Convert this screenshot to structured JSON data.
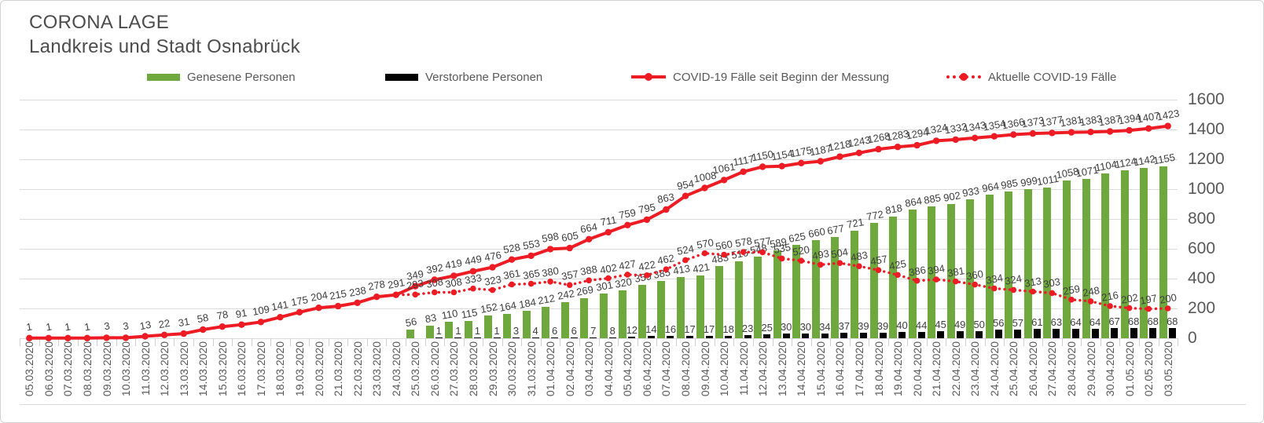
{
  "header": {
    "title": "CORONA LAGE",
    "subtitle": "Landkreis und Stadt Osnabrück"
  },
  "legend": [
    {
      "label": "Genesene Personen",
      "marker": "bar",
      "color": "#6FA83C"
    },
    {
      "label": "Verstorbene Personen",
      "marker": "bar",
      "color": "#000000"
    },
    {
      "label": "COVID-19 Fälle seit Beginn der Messung",
      "marker": "solid-line",
      "color": "#ED1C24"
    },
    {
      "label": "Aktuelle COVID-19 Fälle",
      "marker": "dotted-line",
      "color": "#ED1C24"
    }
  ],
  "colors": {
    "recovered": "#6FA83C",
    "deceased": "#000000",
    "cases": "#ED1C24",
    "grid": "#dbdbdb",
    "axis_text": "#595959",
    "data_label": "#3f3f3f"
  },
  "chart_data": {
    "type": "bar",
    "subtype": "bars-with-lines",
    "title": "CORONA LAGE – Landkreis und Stadt Osnabrück",
    "xlabel": "",
    "ylabel": "",
    "ylim": [
      0,
      1600
    ],
    "yticks": [
      0,
      200,
      400,
      600,
      800,
      1000,
      1200,
      1400,
      1600
    ],
    "grid": "horizontal",
    "legend_position": "top",
    "value_labels": true,
    "categories": [
      "05.03.2020",
      "06.03.2020",
      "07.03.2020",
      "08.03.2020",
      "09.03.2020",
      "10.03.2020",
      "11.03.2020",
      "12.03.2020",
      "13.03.2020",
      "14.03.2020",
      "15.03.2020",
      "16.03.2020",
      "17.03.2020",
      "18.03.2020",
      "19.03.2020",
      "20.03.2020",
      "21.03.2020",
      "22.03.2020",
      "23.03.2020",
      "24.03.2020",
      "25.03.2020",
      "26.03.2020",
      "27.03.2020",
      "28.03.2020",
      "29.03.2020",
      "30.03.2020",
      "31.03.2020",
      "01.04.2020",
      "02.04.2020",
      "03.04.2020",
      "04.04.2020",
      "05.04.2020",
      "06.04.2020",
      "07.04.2020",
      "08.04.2020",
      "09.04.2020",
      "10.04.2020",
      "11.04.2020",
      "12.04.2020",
      "13.04.2020",
      "14.04.2020",
      "15.04.2020",
      "16.04.2020",
      "17.04.2020",
      "18.04.2020",
      "19.04.2020",
      "20.04.2020",
      "21.04.2020",
      "22.04.2020",
      "23.04.2020",
      "24.04.2020",
      "25.04.2020",
      "26.04.2020",
      "27.04.2020",
      "28.04.2020",
      "29.04.2020",
      "30.04.2020",
      "01.05.2020",
      "02.05.2020",
      "03.05.2020"
    ],
    "series": [
      {
        "name": "Genesene Personen",
        "type": "bar",
        "color": "#6FA83C",
        "values": [
          null,
          null,
          null,
          null,
          null,
          null,
          null,
          null,
          null,
          null,
          null,
          null,
          null,
          null,
          null,
          null,
          null,
          null,
          null,
          null,
          56,
          83,
          110,
          115,
          152,
          164,
          184,
          212,
          242,
          269,
          301,
          320,
          359,
          385,
          413,
          421,
          483,
          516,
          548,
          589,
          625,
          660,
          677,
          721,
          772,
          818,
          864,
          885,
          902,
          933,
          964,
          985,
          999,
          1011,
          1058,
          1071,
          1104,
          1124,
          1142,
          1155
        ]
      },
      {
        "name": "Verstorbene Personen",
        "type": "bar",
        "color": "#000000",
        "values": [
          null,
          null,
          null,
          null,
          null,
          null,
          null,
          null,
          null,
          null,
          null,
          null,
          null,
          null,
          null,
          null,
          null,
          null,
          null,
          null,
          null,
          1,
          1,
          1,
          1,
          3,
          4,
          6,
          6,
          7,
          8,
          12,
          14,
          16,
          17,
          17,
          18,
          23,
          25,
          30,
          30,
          34,
          37,
          39,
          39,
          40,
          44,
          45,
          49,
          50,
          56,
          57,
          61,
          63,
          64,
          64,
          67,
          68,
          68,
          68
        ]
      },
      {
        "name": "COVID-19 Fälle seit Beginn der Messung",
        "type": "line",
        "style": "solid",
        "color": "#ED1C24",
        "values": [
          1,
          1,
          1,
          1,
          3,
          3,
          13,
          22,
          31,
          58,
          78,
          91,
          109,
          141,
          175,
          204,
          215,
          238,
          278,
          291,
          349,
          392,
          419,
          449,
          476,
          528,
          553,
          598,
          605,
          664,
          711,
          759,
          795,
          863,
          954,
          1008,
          1061,
          1117,
          1150,
          1154,
          1175,
          1187,
          1218,
          1243,
          1268,
          1283,
          1294,
          1324,
          1332,
          1343,
          1354,
          1366,
          1373,
          1377,
          1381,
          1383,
          1387,
          1394,
          1407,
          1423
        ]
      },
      {
        "name": "Aktuelle COVID-19 Fälle",
        "type": "line",
        "style": "dotted",
        "color": "#ED1C24",
        "values": [
          1,
          1,
          1,
          1,
          3,
          3,
          13,
          22,
          31,
          58,
          78,
          91,
          109,
          141,
          175,
          204,
          215,
          238,
          278,
          291,
          293,
          308,
          308,
          333,
          323,
          361,
          365,
          380,
          357,
          388,
          402,
          427,
          422,
          462,
          524,
          570,
          560,
          578,
          577,
          535,
          520,
          493,
          504,
          483,
          457,
          425,
          386,
          394,
          381,
          360,
          334,
          324,
          313,
          303,
          259,
          248,
          216,
          202,
          197,
          200
        ]
      }
    ]
  }
}
